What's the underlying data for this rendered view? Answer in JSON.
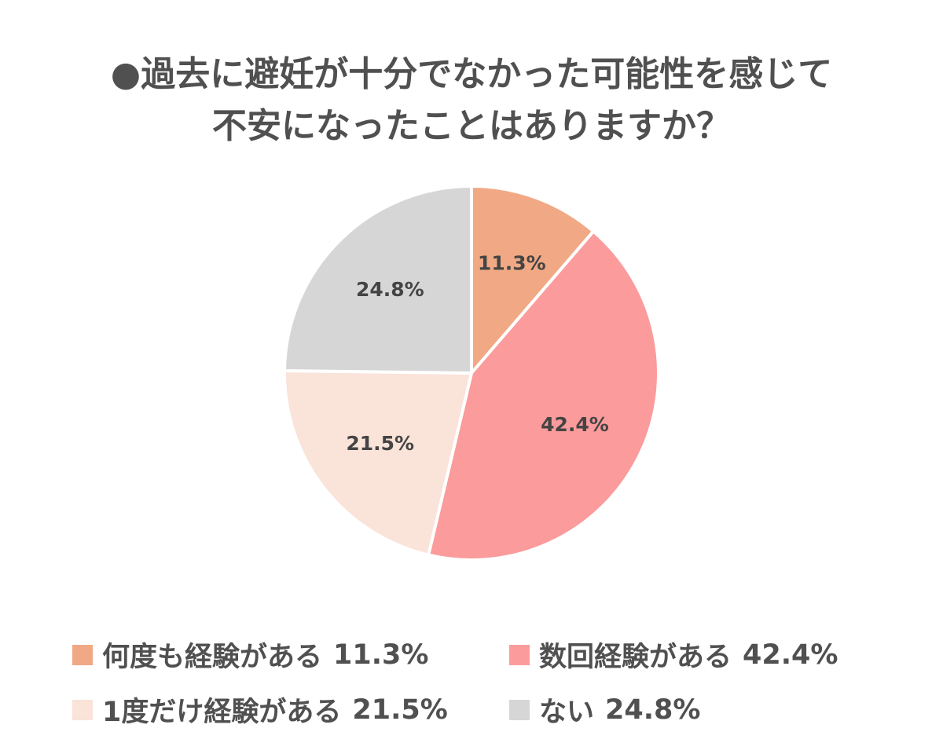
{
  "title": {
    "line1": "●過去に避妊が十分でなかった可能性を感じて",
    "line2": "不安になったことはありますか？"
  },
  "chart_data": {
    "type": "pie",
    "start_angle_deg": 0,
    "direction": "clockwise",
    "slices": [
      {
        "label": "何度も経験がある",
        "value": 11.3,
        "value_label": "11.3%",
        "color": "#f0a984"
      },
      {
        "label": "数回経験がある",
        "value": 42.4,
        "value_label": "42.4%",
        "color": "#fb9b9b"
      },
      {
        "label": "1度だけ経験がある",
        "value": 21.5,
        "value_label": "21.5%",
        "color": "#fae3d9"
      },
      {
        "label": "ない",
        "value": 24.8,
        "value_label": "24.8%",
        "color": "#d6d6d6"
      }
    ],
    "legend_placement": "bottom"
  }
}
